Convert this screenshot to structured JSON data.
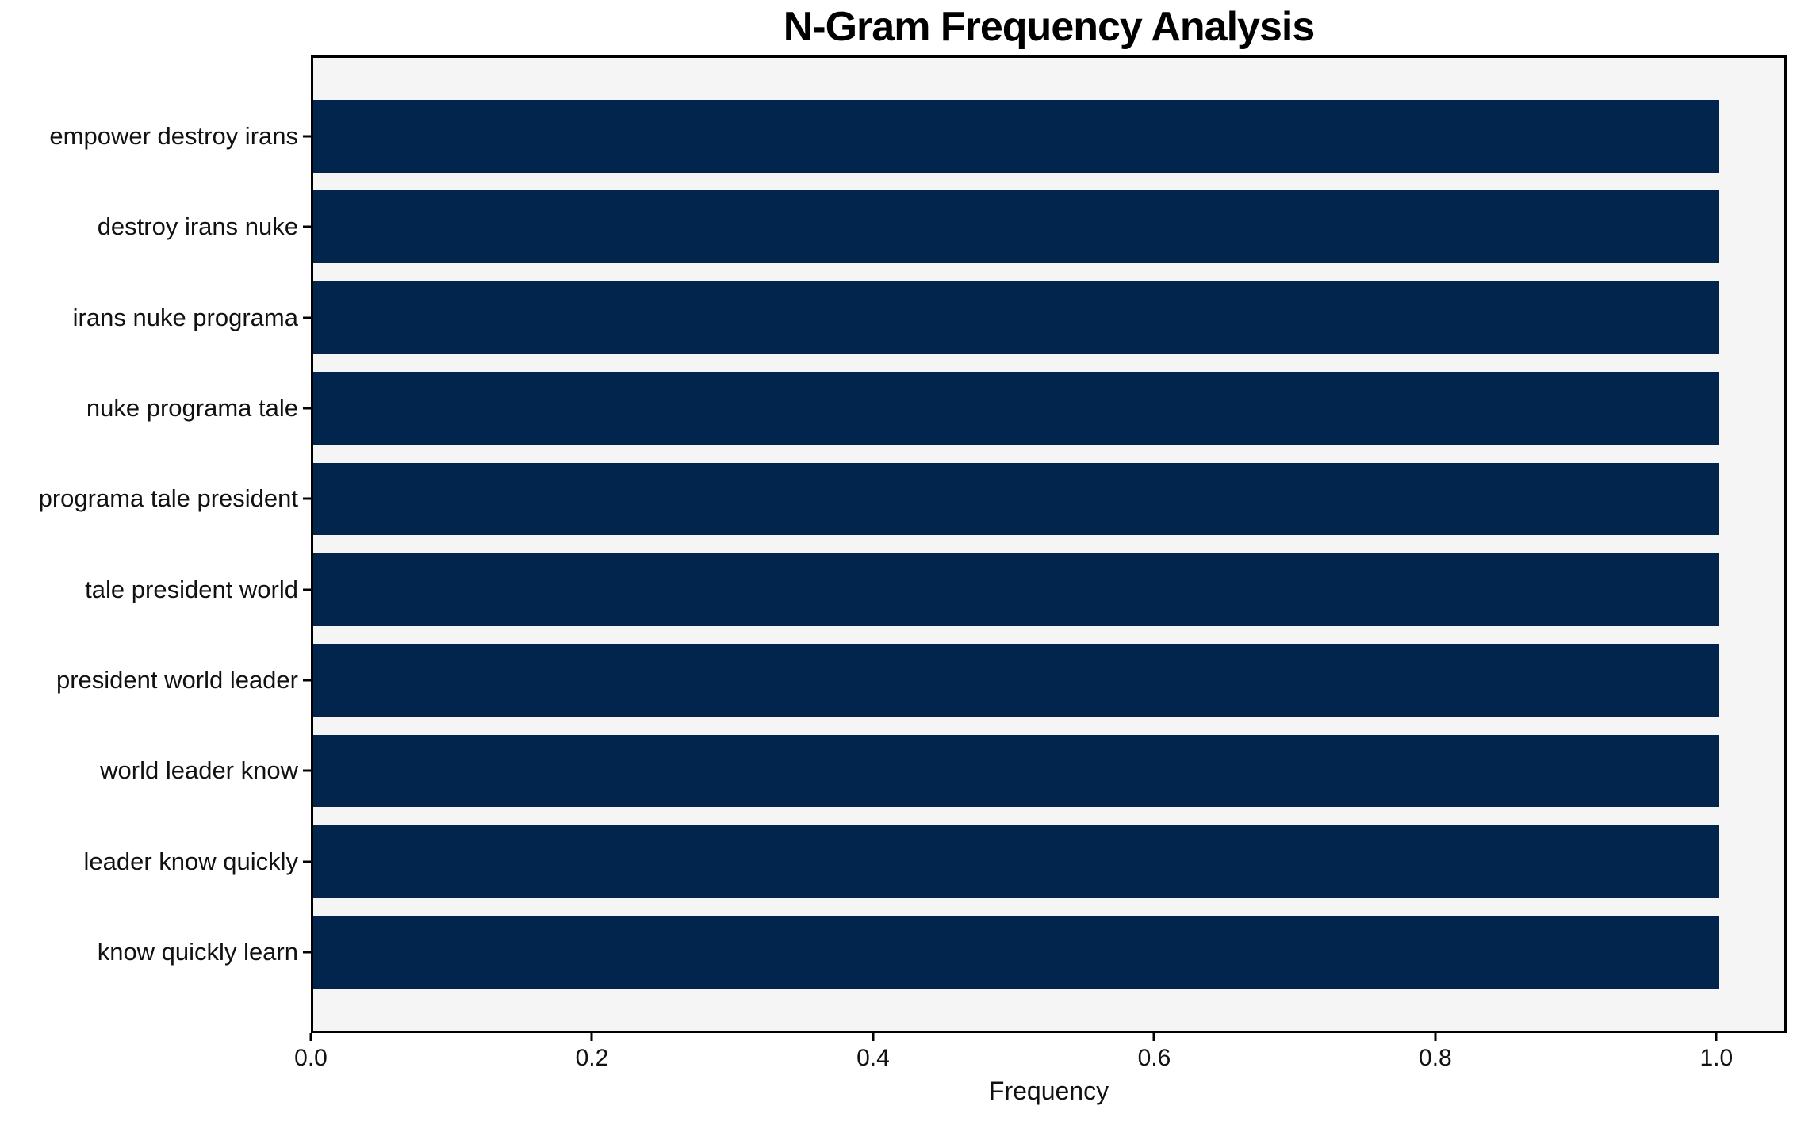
{
  "chart_data": {
    "type": "bar",
    "orientation": "horizontal",
    "title": "N-Gram Frequency Analysis",
    "xlabel": "Frequency",
    "ylabel": "",
    "categories": [
      "empower destroy irans",
      "destroy irans nuke",
      "irans nuke programa",
      "nuke programa tale",
      "programa tale president",
      "tale president world",
      "president world leader",
      "world leader know",
      "leader know quickly",
      "know quickly learn"
    ],
    "values": [
      1.0,
      1.0,
      1.0,
      1.0,
      1.0,
      1.0,
      1.0,
      1.0,
      1.0,
      1.0
    ],
    "xlim": [
      0.0,
      1.05
    ],
    "xticks": [
      0.0,
      0.2,
      0.4,
      0.6,
      0.8,
      1.0
    ],
    "xtick_labels": [
      "0.0",
      "0.2",
      "0.4",
      "0.6",
      "0.8",
      "1.0"
    ],
    "grid": false,
    "legend": "none",
    "colors": {
      "bar": "#02254d",
      "plot_background": "#f5f5f5",
      "figure_background": "#ffffff",
      "spine": "#000000",
      "text": "#111111"
    }
  }
}
